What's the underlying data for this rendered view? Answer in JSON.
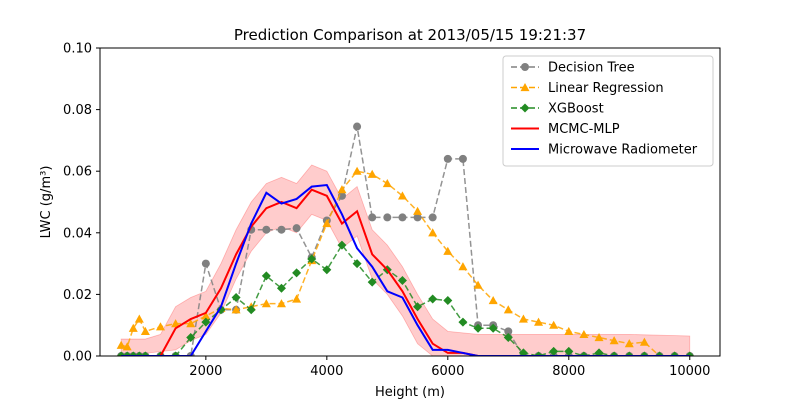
{
  "chart_data": {
    "type": "line",
    "title": "Prediction Comparison at 2013/05/15 19:21:37",
    "xlabel": "Height (m)",
    "ylabel": "LWC (g/m³)",
    "xlim": [
      250,
      10500
    ],
    "ylim": [
      0,
      0.1
    ],
    "xticks": [
      2000,
      4000,
      6000,
      8000,
      10000
    ],
    "yticks": [
      0.0,
      0.02,
      0.04,
      0.06,
      0.08,
      0.1
    ],
    "ytick_labels": [
      "0.00",
      "0.02",
      "0.04",
      "0.06",
      "0.08",
      "0.10"
    ],
    "legend_position": "top-right",
    "grid": false,
    "series": [
      {
        "name": "Decision Tree",
        "color": "#808080",
        "style": "dashed",
        "marker": "circle",
        "points": [
          [
            600,
            0
          ],
          [
            700,
            0
          ],
          [
            800,
            0
          ],
          [
            900,
            0
          ],
          [
            1000,
            0
          ],
          [
            1250,
            0
          ],
          [
            1500,
            0
          ],
          [
            1750,
            0
          ],
          [
            2000,
            0.03
          ],
          [
            2250,
            0.015
          ],
          [
            2500,
            0.015
          ],
          [
            2750,
            0.041
          ],
          [
            3000,
            0.041
          ],
          [
            3250,
            0.041
          ],
          [
            3500,
            0.0415
          ],
          [
            3750,
            0.032
          ],
          [
            4000,
            0.044
          ],
          [
            4250,
            0.052
          ],
          [
            4500,
            0.0745
          ],
          [
            4750,
            0.045
          ],
          [
            5000,
            0.045
          ],
          [
            5250,
            0.045
          ],
          [
            5500,
            0.045
          ],
          [
            5750,
            0.045
          ],
          [
            6000,
            0.064
          ],
          [
            6250,
            0.064
          ],
          [
            6500,
            0.01
          ],
          [
            6750,
            0.01
          ],
          [
            7000,
            0.008
          ],
          [
            7250,
            0
          ],
          [
            7500,
            0
          ],
          [
            7750,
            0
          ],
          [
            8000,
            0
          ],
          [
            8250,
            0
          ],
          [
            8500,
            0
          ],
          [
            8750,
            0
          ],
          [
            9000,
            0
          ],
          [
            9250,
            0
          ],
          [
            9500,
            0
          ],
          [
            9750,
            0
          ],
          [
            10000,
            0
          ]
        ]
      },
      {
        "name": "Linear Regression",
        "color": "#ffa500",
        "style": "dashed",
        "marker": "triangle",
        "points": [
          [
            600,
            0.0035
          ],
          [
            700,
            0.003
          ],
          [
            800,
            0.009
          ],
          [
            900,
            0.012
          ],
          [
            1000,
            0.008
          ],
          [
            1250,
            0.0095
          ],
          [
            1500,
            0.0105
          ],
          [
            1750,
            0.0105
          ],
          [
            2000,
            0.013
          ],
          [
            2250,
            0.0155
          ],
          [
            2500,
            0.015
          ],
          [
            2750,
            0.016
          ],
          [
            3000,
            0.017
          ],
          [
            3250,
            0.017
          ],
          [
            3500,
            0.0185
          ],
          [
            3750,
            0.031
          ],
          [
            4000,
            0.043
          ],
          [
            4250,
            0.054
          ],
          [
            4500,
            0.06
          ],
          [
            4750,
            0.059
          ],
          [
            5000,
            0.056
          ],
          [
            5250,
            0.052
          ],
          [
            5500,
            0.047
          ],
          [
            5750,
            0.04
          ],
          [
            6000,
            0.034
          ],
          [
            6250,
            0.029
          ],
          [
            6500,
            0.023
          ],
          [
            6750,
            0.018
          ],
          [
            7000,
            0.015
          ],
          [
            7250,
            0.012
          ],
          [
            7500,
            0.011
          ],
          [
            7750,
            0.01
          ],
          [
            8000,
            0.008
          ],
          [
            8250,
            0.007
          ],
          [
            8500,
            0.006
          ],
          [
            8750,
            0.005
          ],
          [
            9000,
            0.004
          ],
          [
            9250,
            0.0045
          ],
          [
            9500,
            0
          ],
          [
            9750,
            0
          ],
          [
            10000,
            0
          ]
        ]
      },
      {
        "name": "XGBoost",
        "color": "#228b22",
        "style": "dashed",
        "marker": "diamond",
        "points": [
          [
            600,
            0
          ],
          [
            700,
            0
          ],
          [
            800,
            0
          ],
          [
            900,
            0
          ],
          [
            1000,
            0
          ],
          [
            1250,
            0
          ],
          [
            1500,
            0
          ],
          [
            1750,
            0.006
          ],
          [
            2000,
            0.011
          ],
          [
            2250,
            0.015
          ],
          [
            2500,
            0.019
          ],
          [
            2750,
            0.015
          ],
          [
            3000,
            0.026
          ],
          [
            3250,
            0.022
          ],
          [
            3500,
            0.027
          ],
          [
            3750,
            0.0315
          ],
          [
            4000,
            0.028
          ],
          [
            4250,
            0.036
          ],
          [
            4500,
            0.03
          ],
          [
            4750,
            0.024
          ],
          [
            5000,
            0.028
          ],
          [
            5250,
            0.0245
          ],
          [
            5500,
            0.016
          ],
          [
            5750,
            0.0185
          ],
          [
            6000,
            0.018
          ],
          [
            6250,
            0.011
          ],
          [
            6500,
            0.009
          ],
          [
            6750,
            0.009
          ],
          [
            7000,
            0.006
          ],
          [
            7250,
            0.001
          ],
          [
            7500,
            0
          ],
          [
            7750,
            0.0015
          ],
          [
            8000,
            0.0015
          ],
          [
            8250,
            0
          ],
          [
            8500,
            0.001
          ],
          [
            8750,
            0
          ],
          [
            9000,
            0
          ],
          [
            9250,
            0
          ],
          [
            9500,
            0
          ],
          [
            9750,
            0
          ],
          [
            10000,
            0
          ]
        ]
      },
      {
        "name": "MCMC-MLP",
        "color": "#ff0000",
        "style": "solid",
        "marker": "none",
        "band_color": "#ff0000",
        "points": [
          [
            600,
            0
          ],
          [
            1000,
            0
          ],
          [
            1250,
            0
          ],
          [
            1500,
            0.009
          ],
          [
            1750,
            0.012
          ],
          [
            2000,
            0.014
          ],
          [
            2250,
            0.022
          ],
          [
            2500,
            0.033
          ],
          [
            2750,
            0.042
          ],
          [
            3000,
            0.048
          ],
          [
            3250,
            0.05
          ],
          [
            3500,
            0.048
          ],
          [
            3750,
            0.054
          ],
          [
            4000,
            0.052
          ],
          [
            4250,
            0.043
          ],
          [
            4500,
            0.047
          ],
          [
            4750,
            0.033
          ],
          [
            5000,
            0.028
          ],
          [
            5250,
            0.021
          ],
          [
            5500,
            0.012
          ],
          [
            5750,
            0.004
          ],
          [
            6000,
            0.001
          ],
          [
            6250,
            0.001
          ],
          [
            6500,
            0
          ],
          [
            10000,
            0
          ]
        ],
        "band_upper": [
          [
            600,
            0.0055
          ],
          [
            1000,
            0.0055
          ],
          [
            1250,
            0.007
          ],
          [
            1500,
            0.016
          ],
          [
            1750,
            0.019
          ],
          [
            2000,
            0.021
          ],
          [
            2250,
            0.03
          ],
          [
            2500,
            0.041
          ],
          [
            2750,
            0.05
          ],
          [
            3000,
            0.056
          ],
          [
            3250,
            0.058
          ],
          [
            3500,
            0.056
          ],
          [
            3750,
            0.062
          ],
          [
            4000,
            0.06
          ],
          [
            4250,
            0.051
          ],
          [
            4500,
            0.055
          ],
          [
            4750,
            0.041
          ],
          [
            5000,
            0.036
          ],
          [
            5250,
            0.029
          ],
          [
            5500,
            0.02
          ],
          [
            5750,
            0.012
          ],
          [
            6000,
            0.008
          ],
          [
            6500,
            0.007
          ],
          [
            7000,
            0.007
          ],
          [
            8000,
            0.007
          ],
          [
            9000,
            0.007
          ],
          [
            10000,
            0.0065
          ]
        ],
        "band_lower": [
          [
            600,
            0
          ],
          [
            1500,
            0.002
          ],
          [
            1750,
            0.005
          ],
          [
            2000,
            0.007
          ],
          [
            2250,
            0.014
          ],
          [
            2500,
            0.025
          ],
          [
            2750,
            0.034
          ],
          [
            3000,
            0.04
          ],
          [
            3250,
            0.042
          ],
          [
            3500,
            0.04
          ],
          [
            3750,
            0.046
          ],
          [
            4000,
            0.044
          ],
          [
            4250,
            0.035
          ],
          [
            4500,
            0.039
          ],
          [
            4750,
            0.025
          ],
          [
            5000,
            0.02
          ],
          [
            5250,
            0.013
          ],
          [
            5500,
            0.004
          ],
          [
            5750,
            0
          ],
          [
            10000,
            0
          ]
        ]
      },
      {
        "name": "Microwave Radiometer",
        "color": "#0000ff",
        "style": "solid",
        "marker": "none",
        "points": [
          [
            600,
            0
          ],
          [
            1750,
            0
          ],
          [
            2000,
            0.008
          ],
          [
            2250,
            0.016
          ],
          [
            2500,
            0.03
          ],
          [
            2750,
            0.043
          ],
          [
            3000,
            0.053
          ],
          [
            3250,
            0.0495
          ],
          [
            3500,
            0.051
          ],
          [
            3750,
            0.055
          ],
          [
            4000,
            0.0555
          ],
          [
            4250,
            0.046
          ],
          [
            4500,
            0.035
          ],
          [
            4750,
            0.029
          ],
          [
            5000,
            0.021
          ],
          [
            5250,
            0.019
          ],
          [
            5500,
            0.01
          ],
          [
            5750,
            0.002
          ],
          [
            6000,
            0.002
          ],
          [
            6250,
            0.001
          ],
          [
            6500,
            0
          ],
          [
            10000,
            0
          ]
        ]
      }
    ]
  }
}
